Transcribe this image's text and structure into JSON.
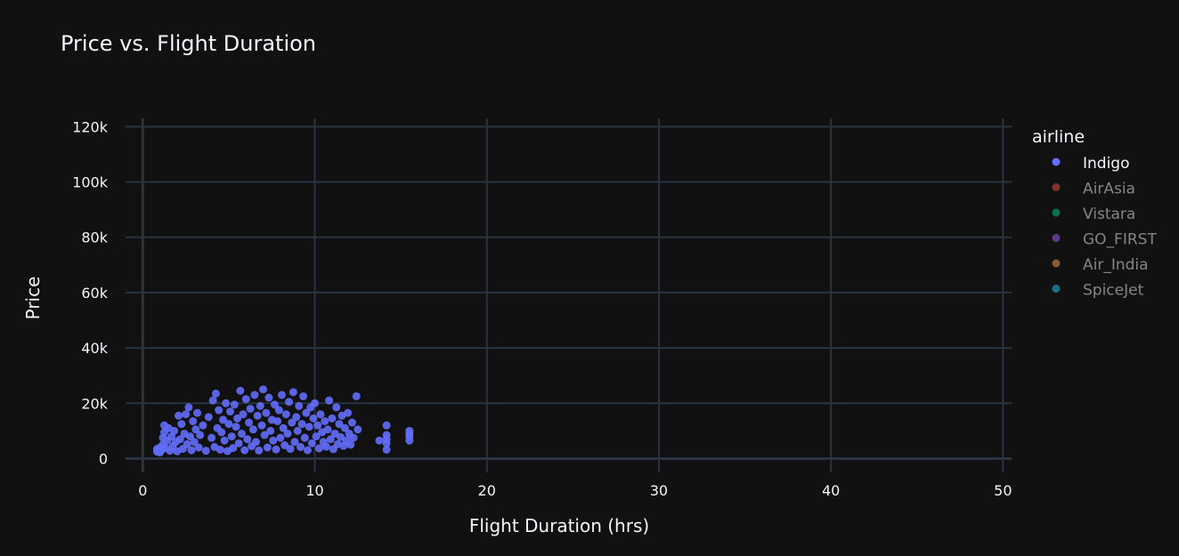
{
  "chart_data": {
    "type": "scatter",
    "title": "Price vs. Flight Duration",
    "xlabel": "Flight Duration (hrs)",
    "ylabel": "Price",
    "xlim": [
      -1,
      50.5
    ],
    "ylim": [
      -5000,
      123000
    ],
    "x_ticks": [
      0,
      10,
      20,
      30,
      40,
      50
    ],
    "x_tick_labels": [
      "0",
      "10",
      "20",
      "30",
      "40",
      "50"
    ],
    "y_ticks": [
      0,
      20000,
      40000,
      60000,
      80000,
      100000,
      120000
    ],
    "y_tick_labels": [
      "0",
      "20k",
      "40k",
      "60k",
      "80k",
      "100k",
      "120k"
    ],
    "grid": true,
    "legend": {
      "title": "airline",
      "placement": "right",
      "entries": [
        {
          "name": "Indigo",
          "color": "#636efa",
          "visible": true
        },
        {
          "name": "AirAsia",
          "color": "#EF553B",
          "visible": false
        },
        {
          "name": "Vistara",
          "color": "#00cc96",
          "visible": false
        },
        {
          "name": "GO_FIRST",
          "color": "#ab63fa",
          "visible": false
        },
        {
          "name": "Air_India",
          "color": "#FFA15A",
          "visible": false
        },
        {
          "name": "SpiceJet",
          "color": "#19d3f3",
          "visible": false
        }
      ]
    },
    "series": [
      {
        "name": "Indigo",
        "color": "#636efa",
        "points": [
          [
            0.83,
            2500
          ],
          [
            0.83,
            3500
          ],
          [
            1.0,
            2200
          ],
          [
            1.0,
            4000
          ],
          [
            1.08,
            3000
          ],
          [
            1.17,
            5000
          ],
          [
            1.17,
            7500
          ],
          [
            1.25,
            9500
          ],
          [
            1.25,
            12000
          ],
          [
            1.33,
            3800
          ],
          [
            1.42,
            6500
          ],
          [
            1.5,
            11000
          ],
          [
            1.58,
            2800
          ],
          [
            1.67,
            8000
          ],
          [
            1.75,
            4500
          ],
          [
            1.83,
            10000
          ],
          [
            1.92,
            6000
          ],
          [
            2.0,
            2600
          ],
          [
            2.08,
            15500
          ],
          [
            2.17,
            7000
          ],
          [
            2.25,
            12500
          ],
          [
            2.33,
            3500
          ],
          [
            2.42,
            9000
          ],
          [
            2.5,
            16000
          ],
          [
            2.58,
            5200
          ],
          [
            2.67,
            18500
          ],
          [
            2.75,
            8000
          ],
          [
            2.83,
            3000
          ],
          [
            2.92,
            13500
          ],
          [
            3.0,
            6000
          ],
          [
            3.08,
            10500
          ],
          [
            3.17,
            16500
          ],
          [
            3.25,
            4000
          ],
          [
            3.33,
            8500
          ],
          [
            3.5,
            12000
          ],
          [
            3.67,
            2800
          ],
          [
            3.83,
            15000
          ],
          [
            4.0,
            7500
          ],
          [
            4.08,
            21000
          ],
          [
            4.17,
            4200
          ],
          [
            4.25,
            23500
          ],
          [
            4.33,
            11000
          ],
          [
            4.42,
            17500
          ],
          [
            4.5,
            3200
          ],
          [
            4.58,
            9500
          ],
          [
            4.67,
            14000
          ],
          [
            4.75,
            6500
          ],
          [
            4.83,
            20000
          ],
          [
            4.92,
            2700
          ],
          [
            5.0,
            12500
          ],
          [
            5.08,
            17000
          ],
          [
            5.17,
            8000
          ],
          [
            5.25,
            3800
          ],
          [
            5.33,
            19500
          ],
          [
            5.42,
            11500
          ],
          [
            5.5,
            14500
          ],
          [
            5.58,
            5500
          ],
          [
            5.67,
            24500
          ],
          [
            5.75,
            9000
          ],
          [
            5.83,
            16000
          ],
          [
            5.92,
            3000
          ],
          [
            6.0,
            21500
          ],
          [
            6.08,
            7000
          ],
          [
            6.17,
            13000
          ],
          [
            6.25,
            18000
          ],
          [
            6.33,
            4500
          ],
          [
            6.42,
            10500
          ],
          [
            6.5,
            23000
          ],
          [
            6.58,
            6000
          ],
          [
            6.67,
            15500
          ],
          [
            6.75,
            2900
          ],
          [
            6.83,
            19000
          ],
          [
            6.92,
            12000
          ],
          [
            7.0,
            25000
          ],
          [
            7.08,
            8500
          ],
          [
            7.17,
            16500
          ],
          [
            7.25,
            4000
          ],
          [
            7.33,
            22000
          ],
          [
            7.42,
            10000
          ],
          [
            7.5,
            14000
          ],
          [
            7.58,
            6500
          ],
          [
            7.67,
            19500
          ],
          [
            7.75,
            3300
          ],
          [
            7.83,
            13500
          ],
          [
            7.92,
            17500
          ],
          [
            8.0,
            7500
          ],
          [
            8.08,
            23000
          ],
          [
            8.17,
            11000
          ],
          [
            8.25,
            4800
          ],
          [
            8.33,
            16000
          ],
          [
            8.42,
            9000
          ],
          [
            8.5,
            20500
          ],
          [
            8.58,
            3500
          ],
          [
            8.67,
            13000
          ],
          [
            8.75,
            24000
          ],
          [
            8.83,
            6000
          ],
          [
            8.92,
            15000
          ],
          [
            9.0,
            10000
          ],
          [
            9.08,
            19000
          ],
          [
            9.17,
            4200
          ],
          [
            9.25,
            12500
          ],
          [
            9.33,
            22500
          ],
          [
            9.42,
            7500
          ],
          [
            9.5,
            16500
          ],
          [
            9.58,
            3000
          ],
          [
            9.67,
            11500
          ],
          [
            9.75,
            18500
          ],
          [
            9.83,
            5500
          ],
          [
            9.92,
            14500
          ],
          [
            10.0,
            20000
          ],
          [
            10.08,
            8000
          ],
          [
            10.17,
            12000
          ],
          [
            10.25,
            3700
          ],
          [
            10.33,
            16000
          ],
          [
            10.42,
            9500
          ],
          [
            10.5,
            6000
          ],
          [
            10.58,
            13500
          ],
          [
            10.67,
            4300
          ],
          [
            10.75,
            10500
          ],
          [
            10.83,
            21000
          ],
          [
            10.92,
            7000
          ],
          [
            11.0,
            14500
          ],
          [
            11.08,
            3400
          ],
          [
            11.17,
            9000
          ],
          [
            11.25,
            18500
          ],
          [
            11.33,
            5200
          ],
          [
            11.42,
            12500
          ],
          [
            11.5,
            7800
          ],
          [
            11.58,
            15500
          ],
          [
            11.67,
            4600
          ],
          [
            11.75,
            11000
          ],
          [
            11.83,
            6500
          ],
          [
            11.92,
            16500
          ],
          [
            12.0,
            9000
          ],
          [
            12.08,
            5000
          ],
          [
            12.17,
            13000
          ],
          [
            12.25,
            7500
          ],
          [
            12.42,
            22500
          ],
          [
            12.5,
            10500
          ],
          [
            13.75,
            6500
          ],
          [
            14.17,
            3200
          ],
          [
            14.17,
            5500
          ],
          [
            14.17,
            7000
          ],
          [
            14.17,
            8500
          ],
          [
            14.17,
            12000
          ],
          [
            15.5,
            6500
          ],
          [
            15.5,
            8000
          ],
          [
            15.5,
            9000
          ],
          [
            15.5,
            10000
          ]
        ]
      }
    ]
  }
}
